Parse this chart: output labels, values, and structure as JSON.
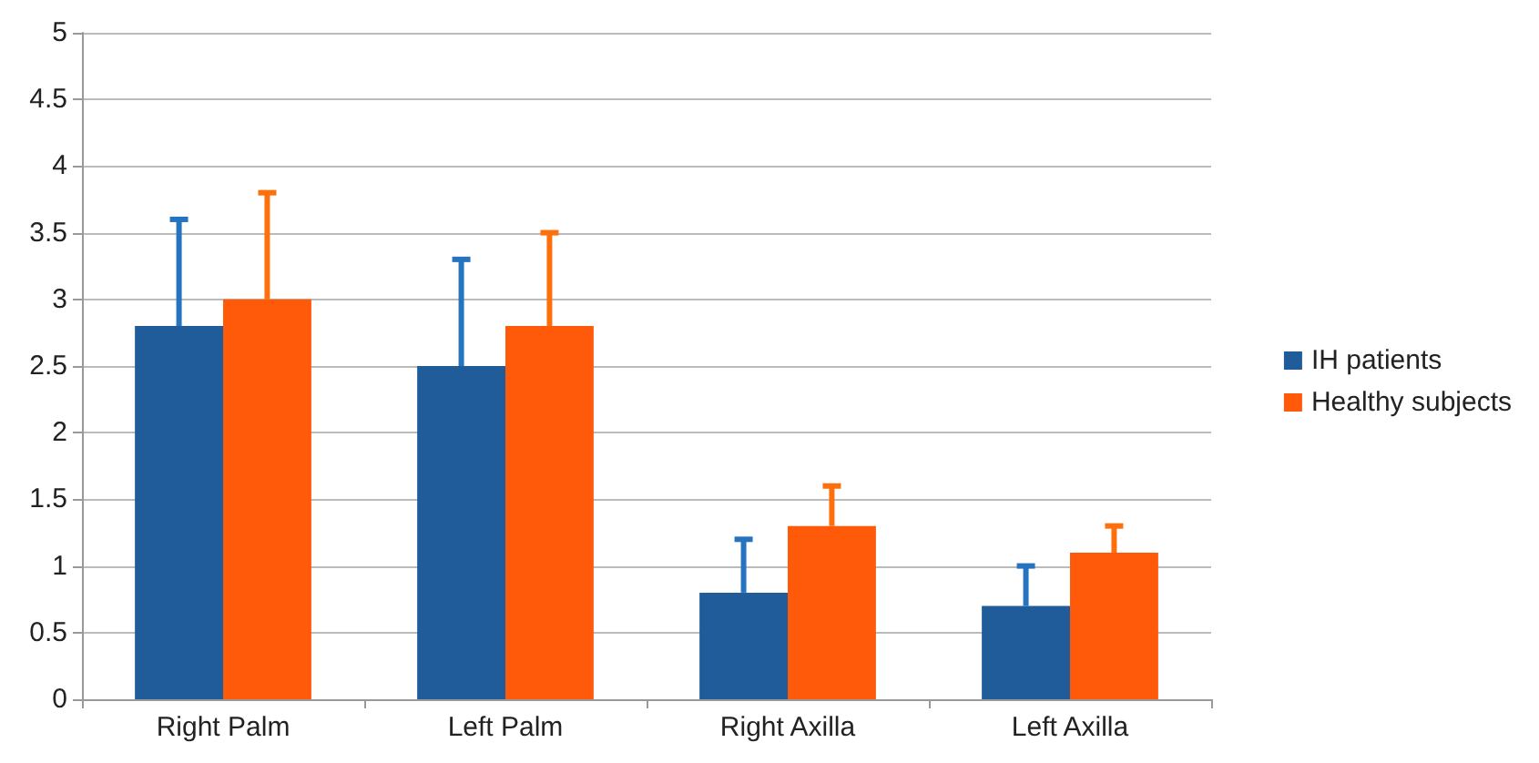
{
  "chart_data": {
    "type": "bar",
    "categories": [
      "Right Palm",
      "Left Palm",
      "Right Axilla",
      "Left Axilla"
    ],
    "series": [
      {
        "name": "IH patients",
        "color": "#1f5c99",
        "values": [
          2.8,
          2.5,
          0.8,
          0.7
        ],
        "errors": [
          [
            2.8,
            3.6
          ],
          [
            2.5,
            3.3
          ],
          [
            0.8,
            1.2
          ],
          [
            0.7,
            1.0
          ]
        ]
      },
      {
        "name": "Healthy subjects",
        "color": "#ff5a0a",
        "values": [
          3.0,
          2.8,
          1.3,
          1.1
        ],
        "errors": [
          [
            3.0,
            3.8
          ],
          [
            2.8,
            3.5
          ],
          [
            1.3,
            1.6
          ],
          [
            1.1,
            1.3
          ]
        ]
      }
    ],
    "ylim": [
      0,
      5
    ],
    "yticks": [
      0,
      0.5,
      1,
      1.5,
      2,
      2.5,
      3,
      3.5,
      4,
      4.5,
      5
    ],
    "grid": "y",
    "legend": "right"
  }
}
